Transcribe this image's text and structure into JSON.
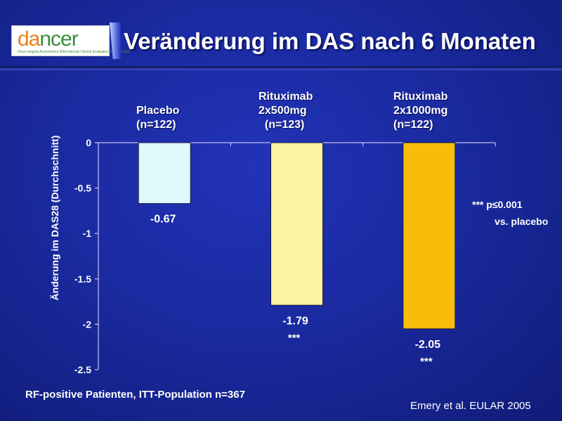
{
  "header": {
    "logo_part1": "da",
    "logo_part2": "ncer",
    "logo_subtitle": "Dose-ranging Assessment iNternational Clinical Evaluation of Rituximab",
    "title": "Veränderung im DAS nach 6 Monaten"
  },
  "annotation": {
    "stars": "***",
    "line1": "p≤0.001",
    "line2": "vs. placebo"
  },
  "footer": {
    "population": "RF-positive Patienten, ITT-Population n=367",
    "citation": "Emery et al. EULAR 2005"
  },
  "colors": {
    "placebo": "#dff8fc",
    "ritux500": "#fbf3a0",
    "ritux1000": "#f7bd0a"
  },
  "chart_data": {
    "type": "bar",
    "title": "Veränderung im DAS nach 6 Monaten",
    "ylabel": "Änderung im DAS28 (Durchschnitt)",
    "xlabel": "",
    "ylim": [
      -2.5,
      0
    ],
    "yticks": [
      "0",
      "-0.5",
      "-1",
      "-1.5",
      "-2",
      "-2.5"
    ],
    "ytick_values": [
      0,
      -0.5,
      -1,
      -1.5,
      -2,
      -2.5
    ],
    "categories": [
      "Placebo\n(n=122)",
      "Rituximab\n2x500mg\n  (n=123)",
      "Rituximab\n2x1000mg\n(n=122)"
    ],
    "values": [
      -0.67,
      -1.79,
      -2.05
    ],
    "value_labels": [
      "-0.67",
      "-1.79",
      "-2.05"
    ],
    "significance": [
      "",
      "***",
      "***"
    ]
  }
}
